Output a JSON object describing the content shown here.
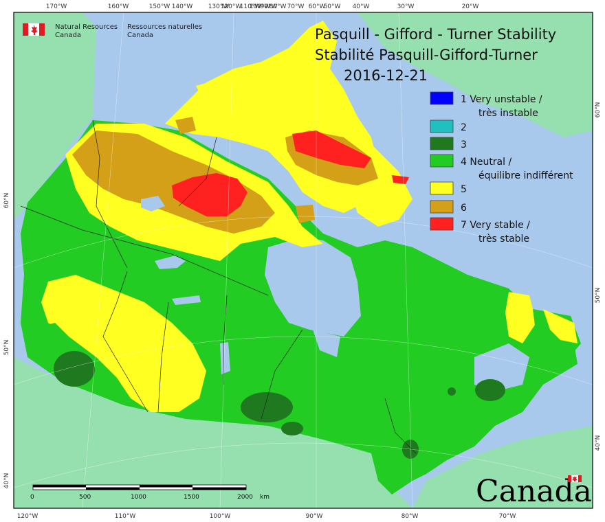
{
  "title": {
    "line1": "Pasquill - Gifford - Turner Stability",
    "line2": "Stabilité Pasquill-Gifford-Turner",
    "date": "2016-12-21"
  },
  "agency": {
    "en_line1": "Natural Resources",
    "en_line2": "Canada",
    "fr_line1": "Ressources naturelles",
    "fr_line2": "Canada",
    "wordmark": "Canada"
  },
  "legend": [
    {
      "label1": "1 Very unstable /",
      "label2": "très instable",
      "color": "#0000ff"
    },
    {
      "label1": "2",
      "label2": "",
      "color": "#20c0c0"
    },
    {
      "label1": "3",
      "label2": "",
      "color": "#1f7a1f"
    },
    {
      "label1": "4 Neutral /",
      "label2": "équilibre indifférent",
      "color": "#22cc22"
    },
    {
      "label1": "5",
      "label2": "",
      "color": "#ffff22"
    },
    {
      "label1": "6",
      "label2": "",
      "color": "#d4a017"
    },
    {
      "label1": "7 Very stable /",
      "label2": "très stable",
      "color": "#ff2020"
    }
  ],
  "top_ticks": [
    "170°W",
    "160°W",
    "150°W",
    "140°W",
    "130°W",
    "120°W",
    "110°W",
    "100°W",
    "90°W",
    "80°W",
    "70°W",
    "60°W",
    "50°W",
    "40°W",
    "30°W",
    "20°W"
  ],
  "bottom_ticks": [
    "120°W",
    "110°W",
    "100°W",
    "90°W",
    "80°W",
    "70°W"
  ],
  "left_ticks": [
    "60°N",
    "50°N",
    "40°N"
  ],
  "right_ticks": [
    "60°N",
    "50°N",
    "40°N"
  ],
  "scale": {
    "labels": [
      "0",
      "500",
      "1000",
      "1500",
      "2000"
    ],
    "unit": "km"
  },
  "colors": {
    "ocean": "#a8c8ec",
    "land_outside": "#96e0b0",
    "class4": "#22cc22",
    "class3": "#1f7a1f",
    "class5": "#ffff22",
    "class6": "#d4a017",
    "class7": "#ff2020",
    "lakes": "#a8c8ec"
  }
}
